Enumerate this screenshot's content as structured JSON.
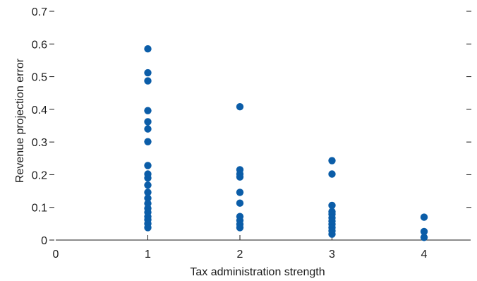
{
  "chart_data": {
    "type": "scatter",
    "title": "",
    "xlabel": "Tax administration strength",
    "ylabel": "Revenue projection error",
    "xlim": [
      0,
      4.5
    ],
    "ylim": [
      0,
      0.7
    ],
    "x_ticks": [
      "0",
      "1",
      "2",
      "3",
      "4"
    ],
    "y_ticks": [
      "0",
      "0.1",
      "0.2",
      "0.3",
      "0.4",
      "0.5",
      "0.6",
      "0.7"
    ],
    "grid": false,
    "legend": "none",
    "marker_color": "#0b5da8",
    "series": [
      {
        "values": [
          {
            "x": 1,
            "y": 0.585
          },
          {
            "x": 1,
            "y": 0.512
          },
          {
            "x": 1,
            "y": 0.487
          },
          {
            "x": 1,
            "y": 0.396
          },
          {
            "x": 1,
            "y": 0.362
          },
          {
            "x": 1,
            "y": 0.34
          },
          {
            "x": 1,
            "y": 0.301
          },
          {
            "x": 1,
            "y": 0.228
          },
          {
            "x": 1,
            "y": 0.202
          },
          {
            "x": 1,
            "y": 0.19
          },
          {
            "x": 1,
            "y": 0.168
          },
          {
            "x": 1,
            "y": 0.146
          },
          {
            "x": 1,
            "y": 0.128
          },
          {
            "x": 1,
            "y": 0.112
          },
          {
            "x": 1,
            "y": 0.097
          },
          {
            "x": 1,
            "y": 0.085
          },
          {
            "x": 1,
            "y": 0.072
          },
          {
            "x": 1,
            "y": 0.062
          },
          {
            "x": 1,
            "y": 0.05
          },
          {
            "x": 1,
            "y": 0.038
          },
          {
            "x": 2,
            "y": 0.408
          },
          {
            "x": 2,
            "y": 0.215
          },
          {
            "x": 2,
            "y": 0.202
          },
          {
            "x": 2,
            "y": 0.193
          },
          {
            "x": 2,
            "y": 0.146
          },
          {
            "x": 2,
            "y": 0.113
          },
          {
            "x": 2,
            "y": 0.072
          },
          {
            "x": 2,
            "y": 0.06
          },
          {
            "x": 2,
            "y": 0.048
          },
          {
            "x": 2,
            "y": 0.038
          },
          {
            "x": 3,
            "y": 0.243
          },
          {
            "x": 3,
            "y": 0.202
          },
          {
            "x": 3,
            "y": 0.106
          },
          {
            "x": 3,
            "y": 0.087
          },
          {
            "x": 3,
            "y": 0.079
          },
          {
            "x": 3,
            "y": 0.068
          },
          {
            "x": 3,
            "y": 0.058
          },
          {
            "x": 3,
            "y": 0.048
          },
          {
            "x": 3,
            "y": 0.038
          },
          {
            "x": 3,
            "y": 0.028
          },
          {
            "x": 3,
            "y": 0.018
          },
          {
            "x": 4,
            "y": 0.07
          },
          {
            "x": 4,
            "y": 0.026
          },
          {
            "x": 4,
            "y": 0.008
          }
        ]
      }
    ]
  }
}
